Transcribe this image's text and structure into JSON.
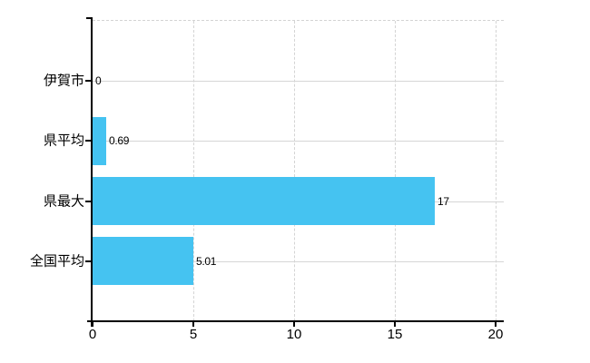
{
  "chart_data": {
    "type": "bar",
    "orientation": "horizontal",
    "title": "",
    "categories": [
      "伊賀市",
      "県平均",
      "県最大",
      "全国平均"
    ],
    "values": [
      0,
      0.69,
      17,
      5.01
    ],
    "value_labels": [
      "0",
      "0.69",
      "17",
      "5.01"
    ],
    "xlim": [
      0,
      20
    ],
    "x_ticks": [
      0,
      5,
      10,
      15,
      20
    ],
    "x_tick_labels": [
      "0",
      "5",
      "10",
      "15",
      "20"
    ],
    "grid": true,
    "legend_position": "none",
    "bar_color": "#45C3F1",
    "axis_color": "#000000",
    "gridline_color_horizontal": "#D6D6D6",
    "gridline_color_vertical": "#D4D4D4",
    "text_color": "#000000",
    "background_color": "#FFFFFF"
  }
}
